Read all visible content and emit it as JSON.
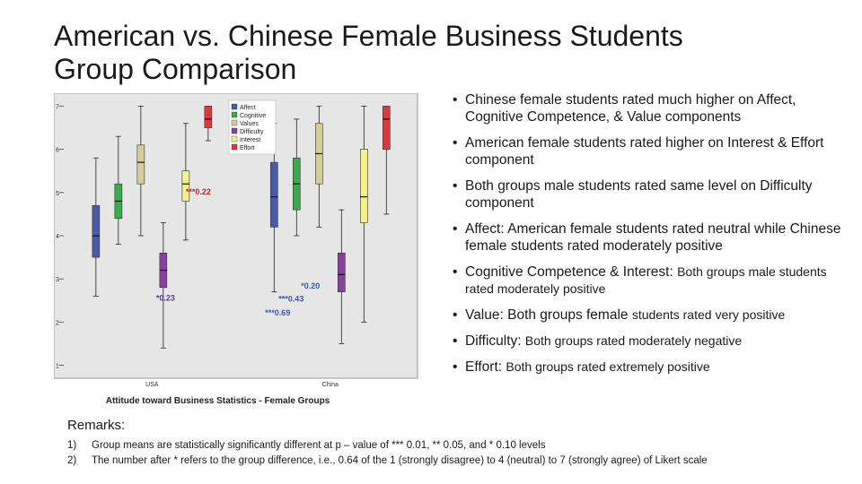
{
  "title_line1": "American vs. Chinese Female Business Students",
  "title_line2": "Group Comparison",
  "bullets": [
    {
      "main": "Chinese female students rated much higher on Affect, Cognitive Competence, & Value components",
      "sub": ""
    },
    {
      "main": "American female students rated higher on Interest & Effort component",
      "sub": ""
    },
    {
      "main": "Both groups male students rated same level on Difficulty component",
      "sub": ""
    },
    {
      "main": "Affect: American female students rated neutral while Chinese female students rated moderately positive",
      "sub": ""
    },
    {
      "main": "Cognitive Competence & Interest: ",
      "sub": "Both groups male students rated moderately positive"
    },
    {
      "main": "Value: Both groups female ",
      "sub": "students rated very positive"
    },
    {
      "main": "Difficulty: ",
      "sub": "Both groups rated moderately negative"
    },
    {
      "main": "Effort: ",
      "sub": "Both groups rated extremely positive"
    }
  ],
  "remarks": {
    "title": "Remarks:",
    "items": [
      {
        "num": "1)",
        "text": "Group means are statistically significantly different at p – value of *** 0.01,  ** 0.05, and * 0.10 levels"
      },
      {
        "num": "2)",
        "text": "The number after * refers to the group difference, i.e., 0.64 of the 1 (strongly disagree) to 4 (neutral) to 7 (strongly agree) of Likert scale"
      }
    ]
  },
  "chart_data": {
    "type": "boxplot",
    "xlabel": "Attitude toward Business Statistics - Female Groups",
    "ylabel": "",
    "ylim": [
      0.7,
      7.3
    ],
    "yticks": [
      1,
      2,
      3,
      4,
      5,
      6,
      7
    ],
    "categories": [
      "USA",
      "China"
    ],
    "legend_position": "top-center",
    "series": [
      {
        "name": "Affect",
        "color": "#4a5aa8",
        "boxes": [
          {
            "min": 2.6,
            "q1": 3.5,
            "median": 4.0,
            "q3": 4.7,
            "max": 5.8
          },
          {
            "min": 2.7,
            "q1": 4.2,
            "median": 4.9,
            "q3": 5.7,
            "max": 6.6
          }
        ]
      },
      {
        "name": "Cognitive",
        "color": "#3bab4c",
        "boxes": [
          {
            "min": 3.8,
            "q1": 4.4,
            "median": 4.8,
            "q3": 5.2,
            "max": 6.3
          },
          {
            "min": 4.0,
            "q1": 4.6,
            "median": 5.2,
            "q3": 5.8,
            "max": 6.7
          }
        ]
      },
      {
        "name": "Values",
        "color": "#d4cc9a",
        "boxes": [
          {
            "min": 4.0,
            "q1": 5.2,
            "median": 5.7,
            "q3": 6.1,
            "max": 7.0
          },
          {
            "min": 4.2,
            "q1": 5.2,
            "median": 5.9,
            "q3": 6.6,
            "max": 7.0
          }
        ]
      },
      {
        "name": "Difficulty",
        "color": "#8a3fa0",
        "boxes": [
          {
            "min": 1.4,
            "q1": 2.8,
            "median": 3.2,
            "q3": 3.6,
            "max": 4.3
          },
          {
            "min": 1.5,
            "q1": 2.7,
            "median": 3.1,
            "q3": 3.6,
            "max": 4.6
          }
        ]
      },
      {
        "name": "Interest",
        "color": "#f6f08a",
        "boxes": [
          {
            "min": 3.9,
            "q1": 4.8,
            "median": 5.2,
            "q3": 5.5,
            "max": 6.6
          },
          {
            "min": 2.0,
            "q1": 4.3,
            "median": 4.9,
            "q3": 6.0,
            "max": 7.0
          }
        ]
      },
      {
        "name": "Effort",
        "color": "#e0363c",
        "boxes": [
          {
            "min": 6.2,
            "q1": 6.5,
            "median": 6.7,
            "q3": 7.0,
            "max": 7.0
          },
          {
            "min": 4.5,
            "q1": 6.0,
            "median": 6.7,
            "q3": 7.0,
            "max": 7.0
          }
        ]
      }
    ],
    "annotations": [
      {
        "text": "***0.22",
        "color": "#c0282d",
        "target_category": "USA",
        "target_series": "Interest"
      },
      {
        "text": "*0.23",
        "color": "#5a3a8a",
        "target_category": "USA",
        "target_series": "Difficulty"
      },
      {
        "text": "*0.20",
        "color": "#3b5aa8",
        "target_category": "China",
        "target_series": "Interest"
      },
      {
        "text": "***0.43",
        "color": "#3b5aa8",
        "target_category": "China",
        "target_series": "Interest"
      },
      {
        "text": "***0.69",
        "color": "#3b5aa8",
        "target_category": "China",
        "target_series": "Affect"
      }
    ]
  }
}
